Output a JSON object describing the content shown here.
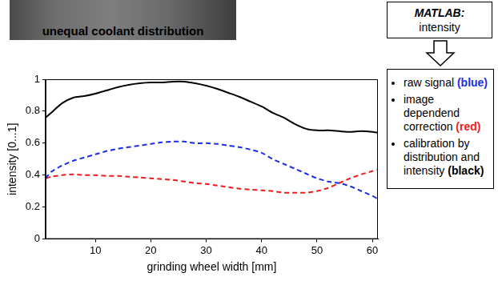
{
  "chart_data": {
    "type": "line",
    "x_label": "grinding wheel width [mm]",
    "y_label": "intensity [0...1]",
    "x": [
      1,
      2,
      4,
      6,
      8,
      10,
      12,
      14,
      16,
      18,
      20,
      22,
      24,
      26,
      28,
      30,
      32,
      34,
      36,
      38,
      40,
      42,
      44,
      46,
      48,
      50,
      52,
      54,
      56,
      58,
      60,
      61
    ],
    "series": [
      {
        "name": "raw signal (blue)",
        "color": "#1a2ee8",
        "line_style": "dashed",
        "values": [
          0.38,
          0.42,
          0.46,
          0.49,
          0.51,
          0.53,
          0.55,
          0.565,
          0.575,
          0.585,
          0.595,
          0.605,
          0.61,
          0.61,
          0.6,
          0.6,
          0.595,
          0.585,
          0.575,
          0.56,
          0.54,
          0.5,
          0.47,
          0.44,
          0.41,
          0.38,
          0.36,
          0.35,
          0.33,
          0.3,
          0.27,
          0.25
        ]
      },
      {
        "name": "image dependend correction (red)",
        "color": "#ee1c1c",
        "line_style": "dashed",
        "values": [
          0.38,
          0.39,
          0.4,
          0.405,
          0.4,
          0.4,
          0.395,
          0.395,
          0.39,
          0.385,
          0.38,
          0.375,
          0.37,
          0.36,
          0.35,
          0.345,
          0.335,
          0.325,
          0.315,
          0.31,
          0.305,
          0.3,
          0.29,
          0.29,
          0.29,
          0.3,
          0.32,
          0.35,
          0.38,
          0.405,
          0.425,
          0.435
        ]
      },
      {
        "name": "calibration by distribution and intensity (black)",
        "color": "#000000",
        "line_style": "solid",
        "values": [
          0.76,
          0.79,
          0.85,
          0.885,
          0.895,
          0.91,
          0.93,
          0.95,
          0.965,
          0.975,
          0.98,
          0.98,
          0.985,
          0.985,
          0.975,
          0.96,
          0.94,
          0.915,
          0.89,
          0.86,
          0.83,
          0.79,
          0.76,
          0.72,
          0.69,
          0.68,
          0.68,
          0.675,
          0.67,
          0.675,
          0.67,
          0.665
        ]
      }
    ],
    "xlim": [
      1,
      61
    ],
    "xticks": [
      10,
      20,
      30,
      40,
      50,
      60
    ],
    "ylim": [
      0,
      1
    ],
    "yticks": [
      0,
      0.2,
      0.4,
      0.6,
      0.8,
      1
    ],
    "grid": false,
    "legend": "right"
  },
  "image_strip": {
    "label": "unequal coolant distribution"
  },
  "matlab_box": {
    "title": "MATLAB:",
    "text": "intensity"
  }
}
